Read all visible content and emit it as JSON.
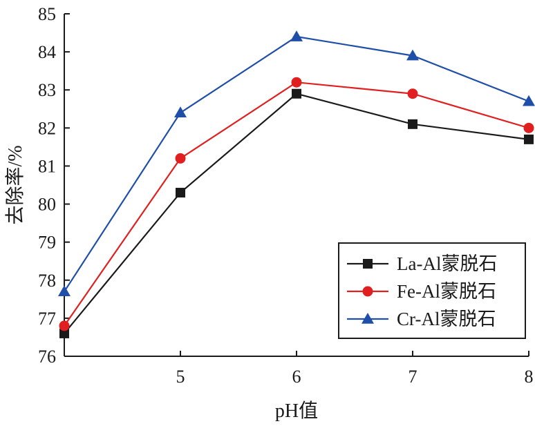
{
  "chart_data": {
    "type": "line",
    "xlabel": "pH值",
    "ylabel": "去除率/%",
    "x": [
      4,
      5,
      6,
      7,
      8
    ],
    "x_ticks": [
      5,
      6,
      7,
      8
    ],
    "xlim": [
      4,
      8
    ],
    "ylim": [
      76,
      85
    ],
    "y_ticks": [
      76,
      77,
      78,
      79,
      80,
      81,
      82,
      83,
      84,
      85
    ],
    "grid": false,
    "legend_position": "bottom-right",
    "series": [
      {
        "name": "La-Al蒙脱石",
        "marker": "square",
        "color": "#1a1a1a",
        "values": [
          76.6,
          80.3,
          82.9,
          82.1,
          81.7
        ]
      },
      {
        "name": "Fe-Al蒙脱石",
        "marker": "circle",
        "color": "#e02020",
        "values": [
          76.8,
          81.2,
          83.2,
          82.9,
          82.0
        ]
      },
      {
        "name": "Cr-Al蒙脱石",
        "marker": "triangle",
        "color": "#1f4ea8",
        "values": [
          77.7,
          82.4,
          84.4,
          83.9,
          82.7
        ]
      }
    ]
  }
}
